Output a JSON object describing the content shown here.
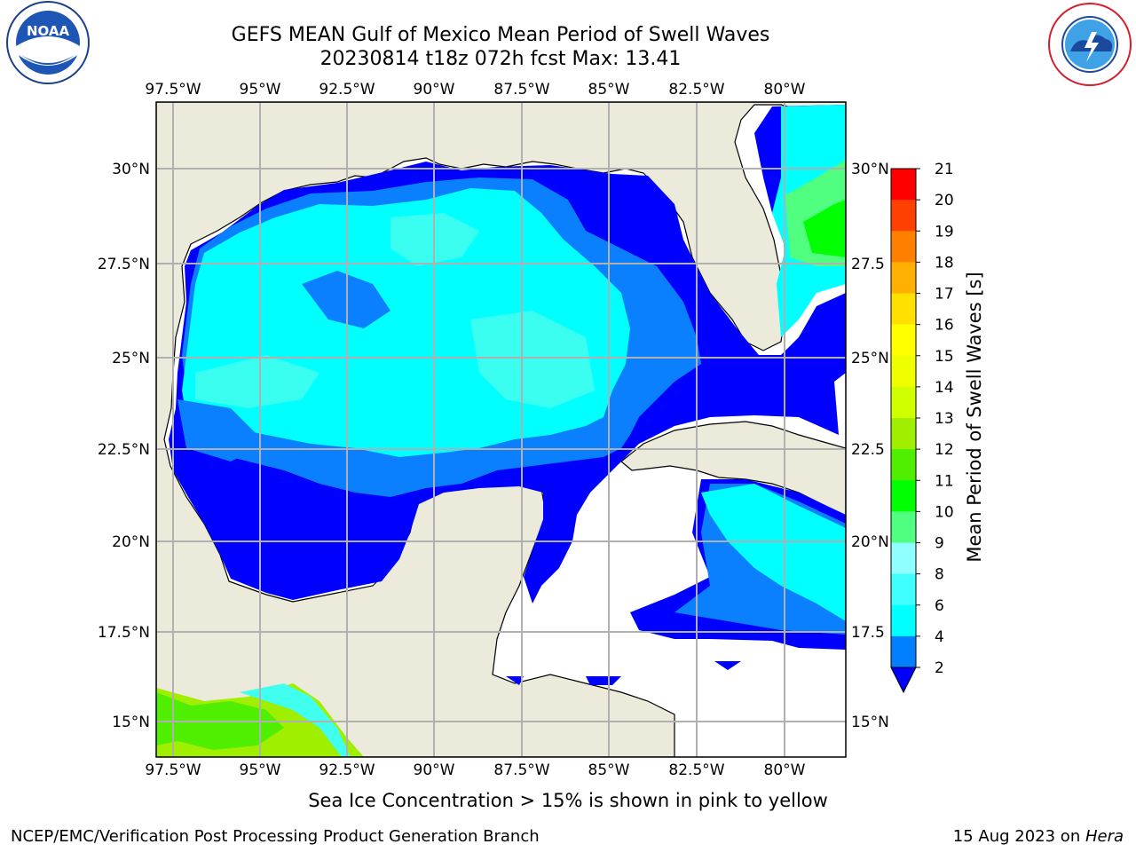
{
  "title": {
    "line1": "GEFS MEAN Gulf of Mexico Mean Period of Swell Waves",
    "line2": "20230814 t18z 072h fcst   Max: 13.41"
  },
  "map": {
    "lon_labels": [
      "97.5°W",
      "95°W",
      "92.5°W",
      "90°W",
      "87.5°W",
      "85°W",
      "82.5°W",
      "80°W"
    ],
    "lat_labels": [
      "30°N",
      "27.5°N",
      "25°N",
      "22.5°N",
      "20°N",
      "17.5°N",
      "15°N"
    ],
    "right_lat_labels": [
      "30°N",
      "27.5",
      "25°N",
      "22.5",
      "20°N",
      "17.5",
      "15°N"
    ]
  },
  "colorbar": {
    "label": "Mean Period of Swell Waves [s]",
    "ticks": [
      "2",
      "4",
      "6",
      "8",
      "9",
      "10",
      "11",
      "12",
      "13",
      "14",
      "15",
      "16",
      "17",
      "18",
      "19",
      "20",
      "21"
    ],
    "colors": [
      "#0000ff",
      "#0080ff",
      "#00ffff",
      "#40ffff",
      "#90ffff",
      "#50ff80",
      "#00ff00",
      "#50ee00",
      "#a0ee00",
      "#d0ff00",
      "#f0ff00",
      "#ffff00",
      "#ffe000",
      "#ffb000",
      "#ff8000",
      "#ff4000",
      "#ff0000"
    ]
  },
  "colors": {
    "land": "#ecebdb",
    "deep_blue": "#0000ff",
    "mid_blue": "#0a80ff",
    "cyan": "#00ffff",
    "light_cyan": "#40ffee",
    "grid": "#b0b0b0"
  },
  "footer": {
    "ice_note": "Sea Ice Concentration > 15% is shown in pink to yellow",
    "credit_left": "NCEP/EMC/Verification Post Processing Product Generation Branch",
    "credit_right_prefix": "15 Aug 2023 on ",
    "credit_right_host": "Hera"
  },
  "logos": {
    "noaa": "NOAA",
    "nws_ring": "NATIONAL WEATHER SERVICE"
  }
}
